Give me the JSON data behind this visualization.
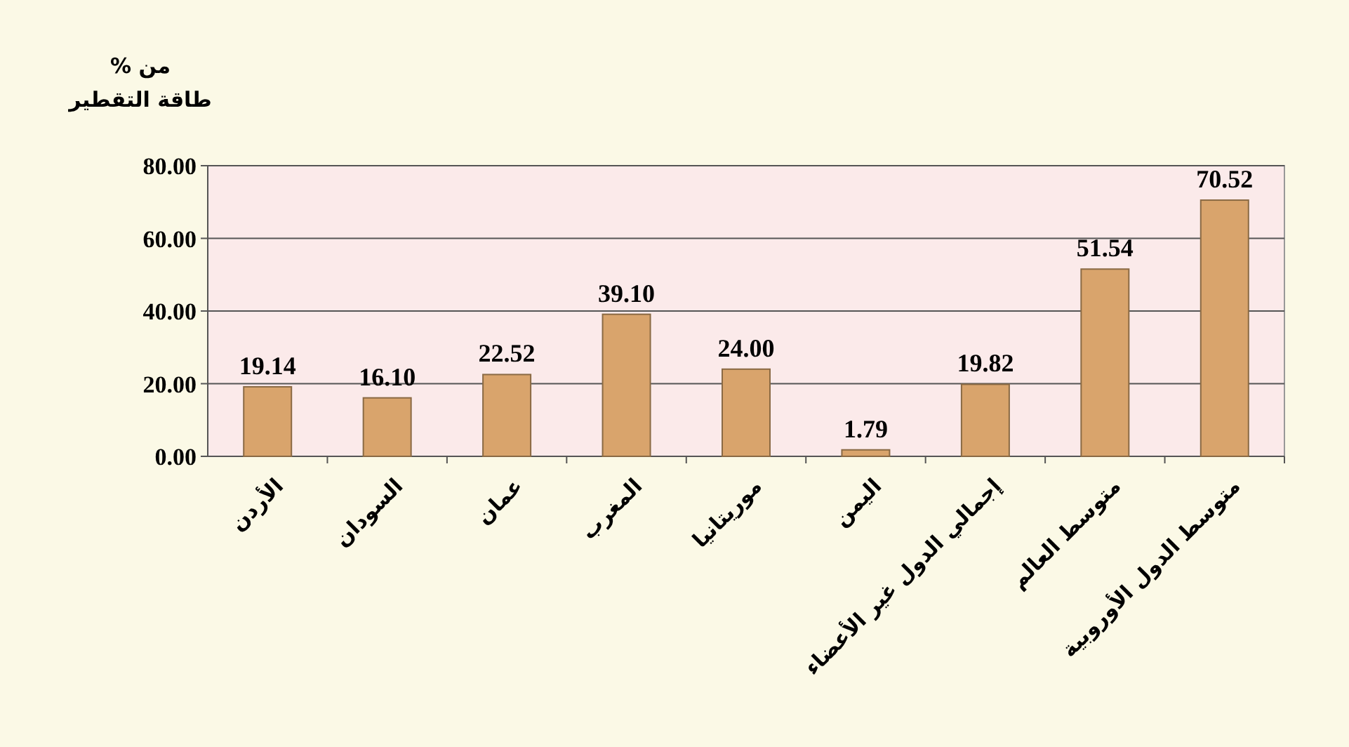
{
  "chart_data": {
    "type": "bar",
    "ylabel": "% من طاقة التقطير",
    "categories": [
      "الأردن",
      "السودان",
      "عمان",
      "المغرب",
      "موريتانيا",
      "اليمن",
      "إجمالي الدول غير الأعضاء",
      "متوسط العالم",
      "متوسط الدول الأوروبية"
    ],
    "values": [
      19.14,
      16.1,
      22.52,
      39.1,
      24.0,
      1.79,
      19.82,
      51.54,
      70.52
    ],
    "value_labels": [
      "19.14",
      "16.10",
      "22.52",
      "39.10",
      "24.00",
      "1.79",
      "19.82",
      "51.54",
      "70.52"
    ],
    "color": "#d9a46c",
    "ylim": [
      0,
      80
    ],
    "yticks": [
      {
        "value": 0,
        "label": "0.00"
      },
      {
        "value": 20,
        "label": "20.00"
      },
      {
        "value": 40,
        "label": "40.00"
      },
      {
        "value": 60,
        "label": "60.00"
      },
      {
        "value": 80,
        "label": "80.00"
      }
    ],
    "grid": "y"
  }
}
